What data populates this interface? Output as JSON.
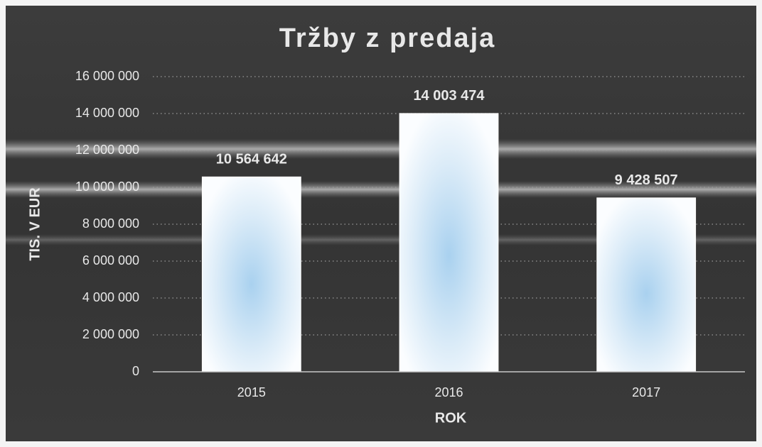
{
  "chart_data": {
    "type": "bar",
    "title": "Tržby z predaja",
    "x_label": "ROK",
    "y_label": "TIS. V EUR",
    "categories": [
      "2015",
      "2016",
      "2017"
    ],
    "values": [
      10564642,
      14003474,
      9428507
    ],
    "value_labels": [
      "10 564 642",
      "14 003 474",
      "9 428 507"
    ],
    "color": "#ffffff",
    "ylim": [
      0,
      16000000
    ],
    "yticks": [
      0,
      {
        "value": 2000000,
        "label": "2 000 000"
      },
      {
        "value": 4000000,
        "label": "4 000 000"
      },
      {
        "value": 6000000,
        "label": "6 000 000"
      },
      {
        "value": 8000000,
        "label": "8 000 000"
      },
      {
        "value": 10000000,
        "label": "10 000 000"
      },
      {
        "value": 12000000,
        "label": "12 000 000"
      },
      {
        "value": 14000000,
        "label": "14 000 000"
      },
      {
        "value": 16000000,
        "label": "16 000 000"
      }
    ],
    "grid": true
  }
}
